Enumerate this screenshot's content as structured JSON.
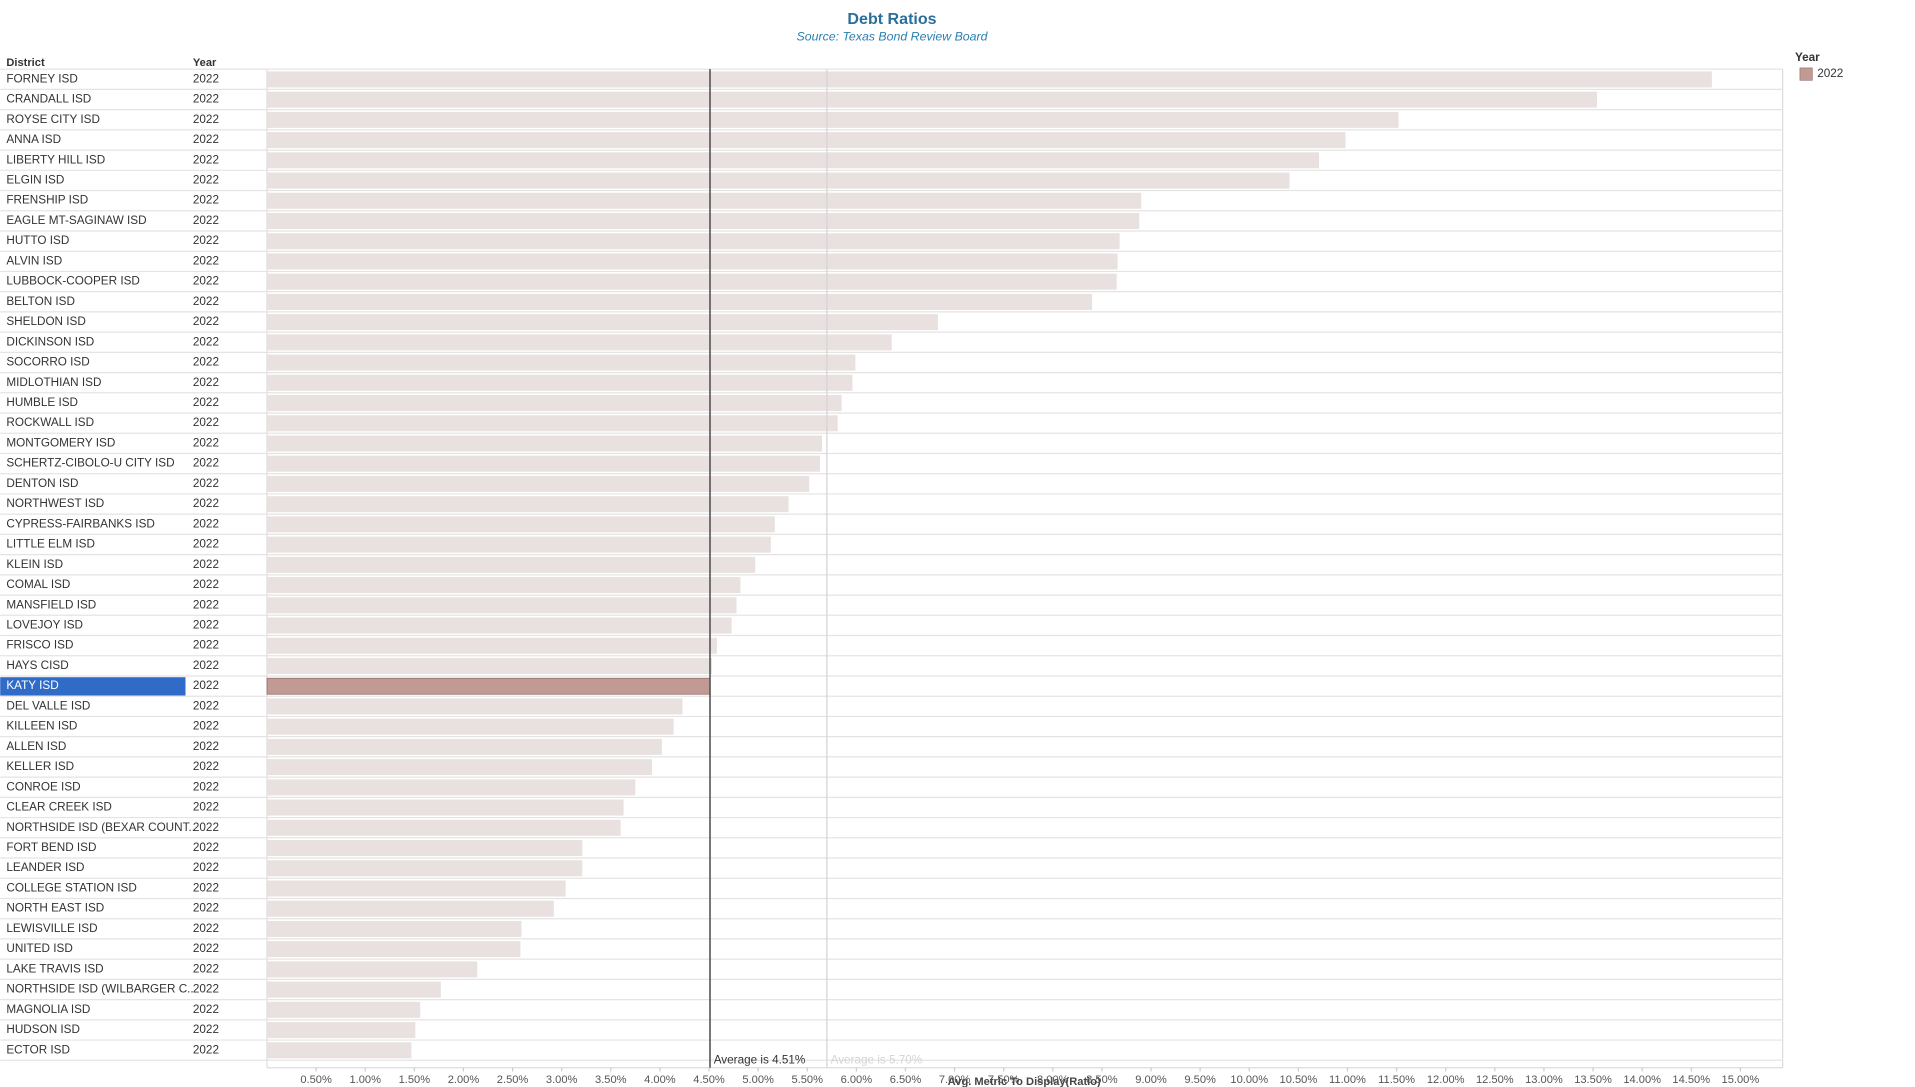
{
  "chart_data": {
    "type": "bar",
    "orientation": "horizontal",
    "title": "Debt Ratios",
    "subtitle": "Source: Texas Bond Review Board",
    "column_headers": [
      "District",
      "Year"
    ],
    "categories": [
      "FORNEY ISD",
      "CRANDALL ISD",
      "ROYSE CITY ISD",
      "ANNA ISD",
      "LIBERTY HILL ISD",
      "ELGIN ISD",
      "FRENSHIP ISD",
      "EAGLE MT-SAGINAW ISD",
      "HUTTO ISD",
      "ALVIN ISD",
      "LUBBOCK-COOPER ISD",
      "BELTON ISD",
      "SHELDON ISD",
      "DICKINSON ISD",
      "SOCORRO ISD",
      "MIDLOTHIAN ISD",
      "HUMBLE ISD",
      "ROCKWALL ISD",
      "MONTGOMERY ISD",
      "SCHERTZ-CIBOLO-U CITY ISD",
      "DENTON ISD",
      "NORTHWEST ISD",
      "CYPRESS-FAIRBANKS ISD",
      "LITTLE ELM ISD",
      "KLEIN ISD",
      "COMAL ISD",
      "MANSFIELD ISD",
      "LOVEJOY ISD",
      "FRISCO ISD",
      "HAYS CISD",
      "KATY ISD",
      "DEL VALLE ISD",
      "KILLEEN ISD",
      "ALLEN ISD",
      "KELLER ISD",
      "CONROE ISD",
      "CLEAR CREEK ISD",
      "NORTHSIDE ISD (BEXAR COUNT..",
      "FORT BEND ISD",
      "LEANDER ISD",
      "COLLEGE STATION ISD",
      "NORTH EAST ISD",
      "LEWISVILLE ISD",
      "UNITED ISD",
      "LAKE TRAVIS ISD",
      "NORTHSIDE ISD (WILBARGER C..",
      "MAGNOLIA ISD",
      "HUDSON ISD",
      "ECTOR ISD"
    ],
    "years": [
      "2022",
      "2022",
      "2022",
      "2022",
      "2022",
      "2022",
      "2022",
      "2022",
      "2022",
      "2022",
      "2022",
      "2022",
      "2022",
      "2022",
      "2022",
      "2022",
      "2022",
      "2022",
      "2022",
      "2022",
      "2022",
      "2022",
      "2022",
      "2022",
      "2022",
      "2022",
      "2022",
      "2022",
      "2022",
      "2022",
      "2022",
      "2022",
      "2022",
      "2022",
      "2022",
      "2022",
      "2022",
      "2022",
      "2022",
      "2022",
      "2022",
      "2022",
      "2022",
      "2022",
      "2022",
      "2022",
      "2022",
      "2022",
      "2022"
    ],
    "values": [
      14.71,
      13.54,
      11.52,
      10.98,
      10.71,
      10.41,
      8.9,
      8.88,
      8.68,
      8.66,
      8.65,
      8.4,
      6.83,
      6.36,
      5.99,
      5.96,
      5.85,
      5.81,
      5.65,
      5.63,
      5.52,
      5.31,
      5.17,
      5.13,
      4.97,
      4.82,
      4.78,
      4.73,
      4.58,
      4.53,
      4.51,
      4.23,
      4.14,
      4.02,
      3.92,
      3.75,
      3.63,
      3.6,
      3.21,
      3.21,
      3.04,
      2.92,
      2.59,
      2.58,
      2.14,
      1.77,
      1.56,
      1.51,
      1.47
    ],
    "colors": [
      "#e8e1df",
      "#e8e1df",
      "#e8e1df",
      "#e8e1df",
      "#e8e1df",
      "#e8e1df",
      "#e8e1df",
      "#e8e1df",
      "#e8e1df",
      "#e8e1df",
      "#e8e1df",
      "#e8e1df",
      "#e8e1df",
      "#e8e1df",
      "#e8e1df",
      "#e8e1df",
      "#e8e1df",
      "#e8e1df",
      "#e8e1df",
      "#e8e1df",
      "#e8e1df",
      "#e8e1df",
      "#e8e1df",
      "#e8e1df",
      "#e8e1df",
      "#e8e1df",
      "#e8e1df",
      "#e8e1df",
      "#e8e1df",
      "#e8e1df",
      "#c09a93",
      "#e8e1df",
      "#e8e1df",
      "#e8e1df",
      "#e8e1df",
      "#e8e1df",
      "#e8e1df",
      "#e8e1df",
      "#e8e1df",
      "#e8e1df",
      "#e8e1df",
      "#e8e1df",
      "#e8e1df",
      "#e8e1df",
      "#e8e1df",
      "#e8e1df",
      "#e8e1df",
      "#e8e1df",
      "#e8e1df"
    ],
    "label_highlight_color": "#2f6bc7",
    "xlabel": "Avg. Metric To Display(Ratio)",
    "xlim": [
      0,
      15.43
    ],
    "xticks": [
      {
        "value": 0.5,
        "label": "0.50%"
      },
      {
        "value": 1,
        "label": "1.00%"
      },
      {
        "value": 1.5,
        "label": "1.50%"
      },
      {
        "value": 2,
        "label": "2.00%"
      },
      {
        "value": 2.5,
        "label": "2.50%"
      },
      {
        "value": 3,
        "label": "3.00%"
      },
      {
        "value": 3.5,
        "label": "3.50%"
      },
      {
        "value": 4,
        "label": "4.00%"
      },
      {
        "value": 4.5,
        "label": "4.50%"
      },
      {
        "value": 5,
        "label": "5.00%"
      },
      {
        "value": 5.5,
        "label": "5.50%"
      },
      {
        "value": 6,
        "label": "6.00%"
      },
      {
        "value": 6.5,
        "label": "6.50%"
      },
      {
        "value": 7,
        "label": "7.00%"
      },
      {
        "value": 7.5,
        "label": "7.50%"
      },
      {
        "value": 8,
        "label": "8.00%"
      },
      {
        "value": 8.5,
        "label": "8.50%"
      },
      {
        "value": 9,
        "label": "9.00%"
      },
      {
        "value": 9.5,
        "label": "9.50%"
      },
      {
        "value": 10,
        "label": "10.00%"
      },
      {
        "value": 10.5,
        "label": "10.50%"
      },
      {
        "value": 11,
        "label": "11.00%"
      },
      {
        "value": 11.5,
        "label": "11.50%"
      },
      {
        "value": 12,
        "label": "12.00%"
      },
      {
        "value": 12.5,
        "label": "12.50%"
      },
      {
        "value": 13,
        "label": "13.00%"
      },
      {
        "value": 13.5,
        "label": "13.50%"
      },
      {
        "value": 14,
        "label": "14.00%"
      },
      {
        "value": 14.5,
        "label": "14.50%"
      },
      {
        "value": 15,
        "label": "15.00%"
      }
    ],
    "reference_lines": [
      {
        "value": 4.51,
        "label": "Average is 4.51%",
        "color": "#555555"
      },
      {
        "value": 5.7,
        "label": "Average is 5.70%",
        "color": "#d4d4d4"
      }
    ],
    "legend": {
      "title": "Year",
      "position": "right",
      "entries": [
        {
          "name": "2022",
          "color": "#c09a93"
        }
      ]
    }
  }
}
